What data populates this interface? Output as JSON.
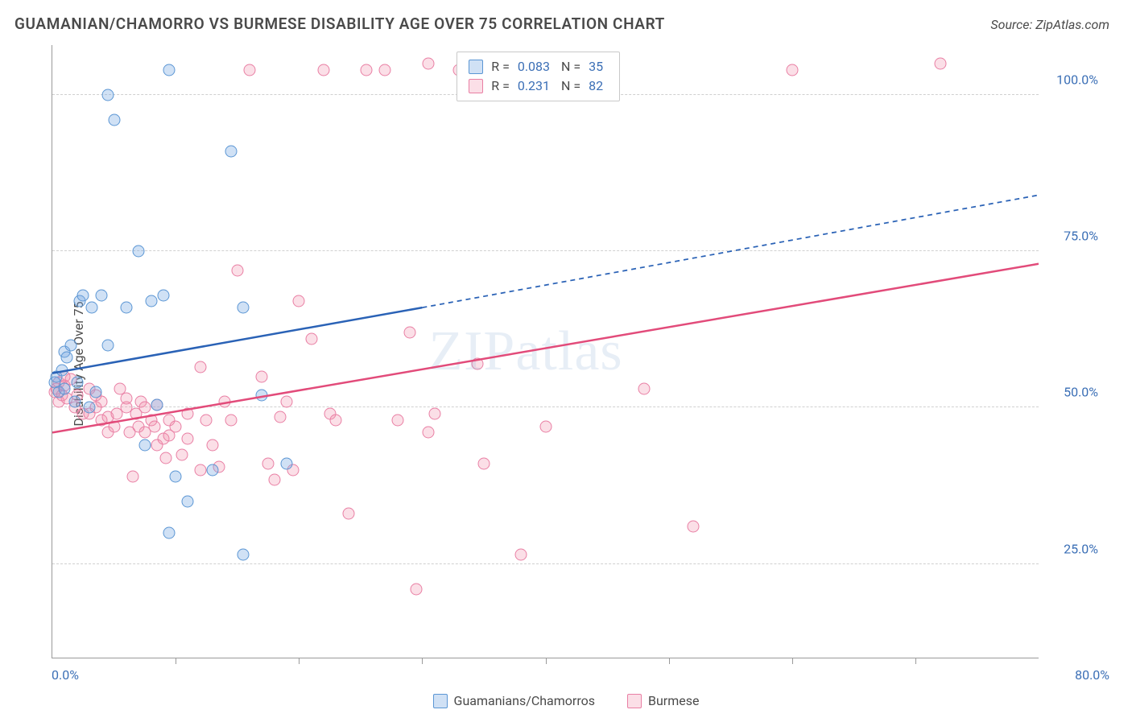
{
  "title": "GUAMANIAN/CHAMORRO VS BURMESE DISABILITY AGE OVER 75 CORRELATION CHART",
  "source": "Source: ZipAtlas.com",
  "ylabel": "Disability Age Over 75",
  "watermark": "ZIPatlas",
  "chart": {
    "type": "scatter",
    "xlim": [
      0,
      80
    ],
    "ylim": [
      10,
      108
    ],
    "xtick_positions": [
      10,
      20,
      30,
      40,
      50,
      60,
      70
    ],
    "yticks": [
      {
        "v": 25,
        "label": "25.0%"
      },
      {
        "v": 50,
        "label": "50.0%"
      },
      {
        "v": 75,
        "label": "75.0%"
      },
      {
        "v": 100,
        "label": "100.0%"
      }
    ],
    "x_origin_label": "0.0%",
    "x_max_label": "80.0%",
    "grid_color": "#d0d0d0",
    "axis_color": "#9a9a9a",
    "background_color": "#ffffff"
  },
  "legend_top": [
    {
      "swatch_fill": "rgba(120,170,225,0.35)",
      "swatch_border": "#5b96d4",
      "r": "0.083",
      "n": "35"
    },
    {
      "swatch_fill": "rgba(240,140,170,0.28)",
      "swatch_border": "#e97fa4",
      "r": "0.231",
      "n": "82"
    }
  ],
  "legend_bottom": [
    {
      "label": "Guamanians/Chamorros",
      "swatch_fill": "rgba(120,170,225,0.35)",
      "swatch_border": "#5b96d4"
    },
    {
      "label": "Burmese",
      "swatch_fill": "rgba(240,140,170,0.28)",
      "swatch_border": "#e97fa4"
    }
  ],
  "series": {
    "blue": {
      "color_fill": "rgba(120,170,225,0.35)",
      "color_border": "#5b96d4",
      "marker_size": 15,
      "trend": {
        "solid_from": [
          0,
          55.5
        ],
        "solid_to": [
          30,
          66
        ],
        "dash_to": [
          80,
          84
        ],
        "color": "#2a62b6",
        "width": 2.5
      },
      "points": [
        [
          0.2,
          54
        ],
        [
          0.3,
          55
        ],
        [
          0.5,
          52.5
        ],
        [
          0.8,
          56
        ],
        [
          1,
          53
        ],
        [
          1,
          59
        ],
        [
          1.2,
          58
        ],
        [
          1.5,
          60
        ],
        [
          1.8,
          51
        ],
        [
          2,
          54
        ],
        [
          2.2,
          67
        ],
        [
          2.5,
          68
        ],
        [
          3,
          50
        ],
        [
          3.2,
          66
        ],
        [
          3.5,
          52.5
        ],
        [
          4,
          68
        ],
        [
          4.5,
          100
        ],
        [
          4.5,
          60
        ],
        [
          5,
          96
        ],
        [
          6,
          66
        ],
        [
          7,
          75
        ],
        [
          7.5,
          44
        ],
        [
          8,
          67
        ],
        [
          8.5,
          50.5
        ],
        [
          9,
          68
        ],
        [
          9.5,
          104
        ],
        [
          9.5,
          30
        ],
        [
          10,
          39
        ],
        [
          11,
          35
        ],
        [
          13,
          40
        ],
        [
          14.5,
          91
        ],
        [
          15.5,
          26.5
        ],
        [
          15.5,
          66
        ],
        [
          17,
          52
        ],
        [
          19,
          41
        ]
      ]
    },
    "pink": {
      "color_fill": "rgba(240,140,170,0.28)",
      "color_border": "#e97fa4",
      "marker_size": 15,
      "trend": {
        "solid_from": [
          0,
          46
        ],
        "solid_to": [
          80,
          73
        ],
        "color": "#e24b7a",
        "width": 2.5
      },
      "points": [
        [
          0.2,
          52.5
        ],
        [
          0.3,
          53
        ],
        [
          0.5,
          51
        ],
        [
          0.5,
          54
        ],
        [
          0.8,
          52
        ],
        [
          1,
          53.5
        ],
        [
          1,
          55
        ],
        [
          1.2,
          51.5
        ],
        [
          1.5,
          54.5
        ],
        [
          1.8,
          50
        ],
        [
          2,
          52
        ],
        [
          2.5,
          49
        ],
        [
          3,
          49
        ],
        [
          3,
          53
        ],
        [
          3.5,
          52
        ],
        [
          3.5,
          50
        ],
        [
          4,
          48
        ],
        [
          4,
          51
        ],
        [
          4.5,
          46
        ],
        [
          4.5,
          48.5
        ],
        [
          5,
          47
        ],
        [
          5.2,
          49
        ],
        [
          5.5,
          53
        ],
        [
          6,
          50
        ],
        [
          6,
          51.5
        ],
        [
          6.3,
          46
        ],
        [
          6.5,
          39
        ],
        [
          6.8,
          49
        ],
        [
          7,
          47
        ],
        [
          7.2,
          51
        ],
        [
          7.5,
          46
        ],
        [
          7.5,
          50
        ],
        [
          8,
          48
        ],
        [
          8.3,
          47
        ],
        [
          8.5,
          50.5
        ],
        [
          8.5,
          44
        ],
        [
          9,
          45
        ],
        [
          9.2,
          42
        ],
        [
          9.5,
          45.5
        ],
        [
          9.5,
          48
        ],
        [
          10,
          47
        ],
        [
          10.5,
          42.5
        ],
        [
          11,
          49
        ],
        [
          11,
          45
        ],
        [
          12,
          40
        ],
        [
          12,
          56.5
        ],
        [
          12.5,
          48
        ],
        [
          13,
          44
        ],
        [
          13.5,
          40.5
        ],
        [
          14,
          51
        ],
        [
          14.5,
          48
        ],
        [
          15,
          72
        ],
        [
          16,
          104
        ],
        [
          17,
          55
        ],
        [
          17.5,
          41
        ],
        [
          18,
          38.5
        ],
        [
          18.5,
          48.5
        ],
        [
          19,
          51
        ],
        [
          19.5,
          40
        ],
        [
          20,
          67
        ],
        [
          21,
          61
        ],
        [
          22,
          104
        ],
        [
          22.5,
          49
        ],
        [
          23,
          48
        ],
        [
          24,
          33
        ],
        [
          25.5,
          104
        ],
        [
          27,
          104
        ],
        [
          28,
          48
        ],
        [
          29,
          62
        ],
        [
          29.5,
          21
        ],
        [
          30.5,
          46
        ],
        [
          30.5,
          105
        ],
        [
          31,
          49
        ],
        [
          33,
          104
        ],
        [
          34.5,
          57
        ],
        [
          35,
          41
        ],
        [
          38,
          26.5
        ],
        [
          40,
          47
        ],
        [
          48,
          53
        ],
        [
          52,
          31
        ],
        [
          60,
          104
        ],
        [
          72,
          105
        ]
      ]
    }
  }
}
